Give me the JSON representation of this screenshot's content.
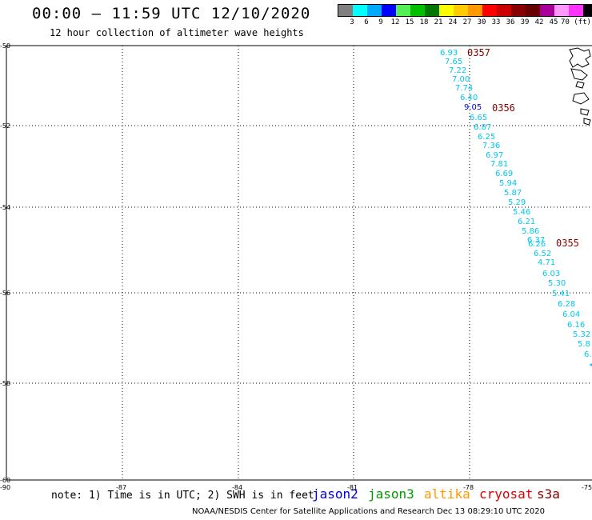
{
  "title": "00:00 – 11:59 UTC 12/10/2020",
  "subtitle": "12 hour collection of altimeter wave heights",
  "legend": {
    "colors": [
      "#808080",
      "#00ffff",
      "#00aaff",
      "#0000ff",
      "#55ee55",
      "#00c000",
      "#007700",
      "#ffff00",
      "#ffcc00",
      "#ff9900",
      "#ff0000",
      "#cc0000",
      "#880000",
      "#660000",
      "#aa0099",
      "#ff99ff",
      "#ff33ff",
      "#000000"
    ],
    "labels": [
      "3",
      "6",
      "9",
      "12",
      "15",
      "18",
      "21",
      "24",
      "27",
      "30",
      "33",
      "36",
      "39",
      "42",
      "45",
      "70 (ft)"
    ],
    "unit": "ft"
  },
  "axes": {
    "lat_labels": [
      "-50",
      "-52",
      "-54",
      "-56",
      "-58",
      "-60"
    ],
    "lon_labels": [
      "-90",
      "-87",
      "-84",
      "-81",
      "-78",
      "-75"
    ]
  },
  "tracks": [
    {
      "time": "0357",
      "color": "#880000"
    },
    {
      "time": "0356",
      "color": "#880000"
    },
    {
      "time": "0355",
      "color": "#880000"
    }
  ],
  "wave_heights": [
    "6.93",
    "7.65",
    "7.22",
    "7.00",
    "7.74",
    "6.40",
    "9.05",
    "6.65",
    "6.87",
    "6.25",
    "7.36",
    "6.97",
    "7.81",
    "6.69",
    "5.94",
    "5.87",
    "5.29",
    "5.46",
    "6.21",
    "5.86",
    "6.37",
    "6.26",
    "6.52",
    "4.71",
    "6.03",
    "5.30",
    "5.41",
    "6.28",
    "6.04",
    "6.16",
    "5.32",
    "5.8",
    "6."
  ],
  "note": "note: 1) Time is in UTC; 2) SWH is in feet",
  "missions": [
    {
      "name": "jason2",
      "color": "#0000dd"
    },
    {
      "name": "jason3",
      "color": "#009900"
    },
    {
      "name": "altika",
      "color": "#ff9900"
    },
    {
      "name": "cryosat",
      "color": "#dd0000"
    },
    {
      "name": "s3a",
      "color": "#880000"
    }
  ],
  "credit": "NOAA/NESDIS Center for Satellite Applications and Research    Dec 13 08:29:10 UTC 2020"
}
